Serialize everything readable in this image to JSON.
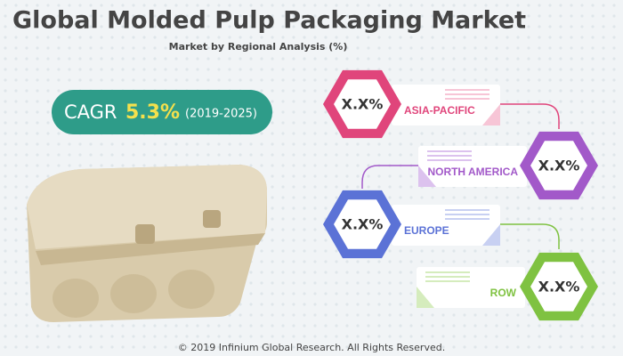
{
  "header": {
    "title": "Global Molded Pulp Packaging Market",
    "subtitle": "Market by Regional Analysis (%)"
  },
  "cagr": {
    "label": "CAGR",
    "value": "5.3%",
    "period": "(2019-2025)"
  },
  "regions": [
    {
      "name": "ASIA-PACIFIC",
      "value": "X.X%"
    },
    {
      "name": "NORTH AMERICA",
      "value": "X.X%"
    },
    {
      "name": "EUROPE",
      "value": "X.X%"
    },
    {
      "name": "ROW",
      "value": "X.X%"
    }
  ],
  "footer": "© 2019 Infinium Global Research. All Rights Reserved."
}
